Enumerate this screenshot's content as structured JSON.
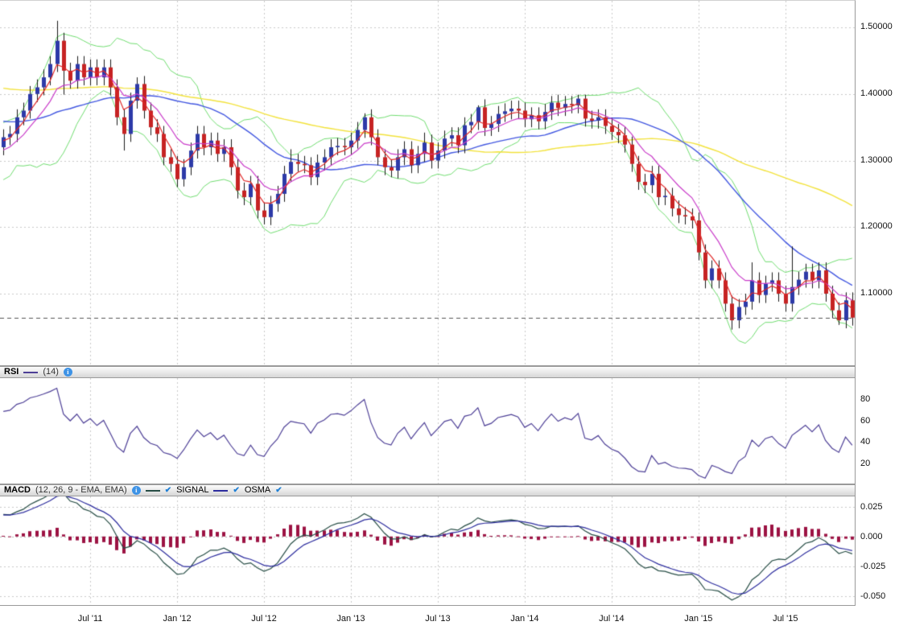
{
  "icons": {
    "check": "✔",
    "properties": "i"
  },
  "chart_data": {
    "type": "candlestick",
    "description": "FX price chart with Bollinger Bands and moving averages, RSI sub-panel and MACD sub-panel",
    "colors": {
      "up": "#2d3aa8",
      "down": "#c62323",
      "wick": "#1a1a1a",
      "bollinger": "#6fdc6f",
      "ma_fast": "#e02626",
      "ma_mid": "#c93cc9",
      "ma_slow": "#4257e0",
      "ma_long": "#f2e23c",
      "grid": "#c8c8c8",
      "price_line": "#555555",
      "rsi": "#4d3f96",
      "macd_line": "#274d45",
      "signal_line": "#2d2d9e",
      "histogram": "#9c1243"
    },
    "x_axis": {
      "ticks": [
        {
          "label": "Jul '11",
          "index": 13
        },
        {
          "label": "Jan '12",
          "index": 26
        },
        {
          "label": "Jul '12",
          "index": 39
        },
        {
          "label": "Jan '13",
          "index": 52
        },
        {
          "label": "Jul '13",
          "index": 65
        },
        {
          "label": "Jan '14",
          "index": 78
        },
        {
          "label": "Jul '14",
          "index": 91
        },
        {
          "label": "Jan '15",
          "index": 104
        },
        {
          "label": "Jul '15",
          "index": 117
        }
      ]
    },
    "main": {
      "y_range": [
        0.99,
        1.54
      ],
      "y_ticks": [
        {
          "label": "1.50000",
          "value": 1.5
        },
        {
          "label": "1.40000",
          "value": 1.4
        },
        {
          "label": "1.30000",
          "value": 1.3
        },
        {
          "label": "1.20000",
          "value": 1.2
        },
        {
          "label": "1.10000",
          "value": 1.1
        }
      ],
      "last_price": 1.064,
      "overlays": {
        "bollinger": {
          "period": 10,
          "deviation": 2
        },
        "ma_fast_period": 4,
        "ma_mid_period": 9,
        "ma_slow_period": 26,
        "ma_long_period": 56,
        "ma_slow_seed": 1.36,
        "ma_long_seed": 1.41
      },
      "prehistory_closes": [
        1.25,
        1.29,
        1.27,
        1.31,
        1.3,
        1.33,
        1.31,
        1.34,
        1.32,
        1.335
      ],
      "candles": [
        [
          1.32,
          1.347,
          1.308,
          1.335
        ],
        [
          1.335,
          1.352,
          1.323,
          1.34
        ],
        [
          1.34,
          1.377,
          1.328,
          1.365
        ],
        [
          1.365,
          1.387,
          1.353,
          1.375
        ],
        [
          1.375,
          1.412,
          1.363,
          1.4
        ],
        [
          1.4,
          1.422,
          1.388,
          1.41
        ],
        [
          1.41,
          1.437,
          1.398,
          1.425
        ],
        [
          1.425,
          1.457,
          1.413,
          1.445
        ],
        [
          1.445,
          1.51,
          1.433,
          1.48
        ],
        [
          1.48,
          1.492,
          1.399,
          1.435
        ],
        [
          1.435,
          1.447,
          1.408,
          1.42
        ],
        [
          1.42,
          1.457,
          1.408,
          1.445
        ],
        [
          1.445,
          1.457,
          1.413,
          1.425
        ],
        [
          1.425,
          1.452,
          1.413,
          1.44
        ],
        [
          1.44,
          1.452,
          1.413,
          1.425
        ],
        [
          1.425,
          1.452,
          1.413,
          1.44
        ],
        [
          1.44,
          1.452,
          1.398,
          1.41
        ],
        [
          1.41,
          1.422,
          1.353,
          1.365
        ],
        [
          1.365,
          1.377,
          1.315,
          1.34
        ],
        [
          1.34,
          1.402,
          1.328,
          1.39
        ],
        [
          1.39,
          1.425,
          1.378,
          1.415
        ],
        [
          1.415,
          1.427,
          1.363,
          1.375
        ],
        [
          1.375,
          1.387,
          1.338,
          1.35
        ],
        [
          1.35,
          1.362,
          1.328,
          1.34
        ],
        [
          1.34,
          1.352,
          1.293,
          1.305
        ],
        [
          1.305,
          1.317,
          1.283,
          1.295
        ],
        [
          1.295,
          1.307,
          1.26,
          1.272
        ],
        [
          1.272,
          1.302,
          1.261,
          1.29
        ],
        [
          1.29,
          1.327,
          1.278,
          1.315
        ],
        [
          1.315,
          1.352,
          1.303,
          1.34
        ],
        [
          1.34,
          1.352,
          1.308,
          1.32
        ],
        [
          1.32,
          1.342,
          1.308,
          1.33
        ],
        [
          1.33,
          1.342,
          1.298,
          1.31
        ],
        [
          1.31,
          1.332,
          1.298,
          1.32
        ],
        [
          1.32,
          1.332,
          1.278,
          1.29
        ],
        [
          1.29,
          1.302,
          1.243,
          1.255
        ],
        [
          1.255,
          1.267,
          1.233,
          1.245
        ],
        [
          1.245,
          1.277,
          1.233,
          1.265
        ],
        [
          1.265,
          1.277,
          1.213,
          1.225
        ],
        [
          1.225,
          1.237,
          1.204,
          1.215
        ],
        [
          1.215,
          1.247,
          1.203,
          1.235
        ],
        [
          1.235,
          1.262,
          1.223,
          1.25
        ],
        [
          1.25,
          1.292,
          1.238,
          1.28
        ],
        [
          1.28,
          1.317,
          1.268,
          1.298
        ],
        [
          1.298,
          1.31,
          1.283,
          1.295
        ],
        [
          1.295,
          1.307,
          1.281,
          1.293
        ],
        [
          1.293,
          1.305,
          1.263,
          1.275
        ],
        [
          1.275,
          1.309,
          1.263,
          1.297
        ],
        [
          1.297,
          1.317,
          1.285,
          1.305
        ],
        [
          1.305,
          1.332,
          1.293,
          1.32
        ],
        [
          1.32,
          1.334,
          1.308,
          1.322
        ],
        [
          1.322,
          1.334,
          1.308,
          1.32
        ],
        [
          1.32,
          1.342,
          1.308,
          1.33
        ],
        [
          1.33,
          1.358,
          1.318,
          1.346
        ],
        [
          1.346,
          1.371,
          1.334,
          1.365
        ],
        [
          1.365,
          1.377,
          1.323,
          1.335
        ],
        [
          1.335,
          1.347,
          1.293,
          1.305
        ],
        [
          1.305,
          1.317,
          1.278,
          1.29
        ],
        [
          1.29,
          1.302,
          1.275,
          1.285
        ],
        [
          1.285,
          1.317,
          1.273,
          1.305
        ],
        [
          1.305,
          1.329,
          1.293,
          1.317
        ],
        [
          1.317,
          1.329,
          1.281,
          1.293
        ],
        [
          1.293,
          1.322,
          1.281,
          1.31
        ],
        [
          1.31,
          1.342,
          1.298,
          1.327
        ],
        [
          1.327,
          1.339,
          1.288,
          1.3
        ],
        [
          1.3,
          1.327,
          1.288,
          1.315
        ],
        [
          1.315,
          1.345,
          1.303,
          1.333
        ],
        [
          1.333,
          1.35,
          1.321,
          1.338
        ],
        [
          1.338,
          1.35,
          1.311,
          1.323
        ],
        [
          1.323,
          1.365,
          1.311,
          1.353
        ],
        [
          1.353,
          1.37,
          1.341,
          1.358
        ],
        [
          1.358,
          1.383,
          1.346,
          1.38
        ],
        [
          1.38,
          1.392,
          1.337,
          1.349
        ],
        [
          1.349,
          1.367,
          1.337,
          1.355
        ],
        [
          1.355,
          1.382,
          1.343,
          1.37
        ],
        [
          1.37,
          1.386,
          1.358,
          1.374
        ],
        [
          1.374,
          1.39,
          1.362,
          1.378
        ],
        [
          1.378,
          1.39,
          1.363,
          1.375
        ],
        [
          1.375,
          1.387,
          1.35,
          1.362
        ],
        [
          1.362,
          1.38,
          1.35,
          1.368
        ],
        [
          1.368,
          1.38,
          1.347,
          1.359
        ],
        [
          1.359,
          1.385,
          1.347,
          1.373
        ],
        [
          1.373,
          1.397,
          1.361,
          1.387
        ],
        [
          1.387,
          1.399,
          1.367,
          1.379
        ],
        [
          1.379,
          1.397,
          1.367,
          1.385
        ],
        [
          1.385,
          1.397,
          1.371,
          1.383
        ],
        [
          1.383,
          1.399,
          1.371,
          1.393
        ],
        [
          1.393,
          1.399,
          1.351,
          1.363
        ],
        [
          1.363,
          1.375,
          1.348,
          1.36
        ],
        [
          1.36,
          1.377,
          1.348,
          1.365
        ],
        [
          1.365,
          1.377,
          1.34,
          1.352
        ],
        [
          1.352,
          1.364,
          1.331,
          1.343
        ],
        [
          1.343,
          1.355,
          1.326,
          1.338
        ],
        [
          1.338,
          1.35,
          1.312,
          1.324
        ],
        [
          1.324,
          1.336,
          1.283,
          1.295
        ],
        [
          1.295,
          1.307,
          1.256,
          1.268
        ],
        [
          1.268,
          1.28,
          1.251,
          1.263
        ],
        [
          1.263,
          1.292,
          1.251,
          1.28
        ],
        [
          1.28,
          1.292,
          1.233,
          1.245
        ],
        [
          1.245,
          1.259,
          1.233,
          1.247
        ],
        [
          1.247,
          1.259,
          1.216,
          1.228
        ],
        [
          1.228,
          1.24,
          1.206,
          1.218
        ],
        [
          1.218,
          1.23,
          1.204,
          1.216
        ],
        [
          1.216,
          1.228,
          1.198,
          1.21
        ],
        [
          1.21,
          1.222,
          1.15,
          1.162
        ],
        [
          1.162,
          1.174,
          1.108,
          1.12
        ],
        [
          1.12,
          1.15,
          1.108,
          1.138
        ],
        [
          1.138,
          1.15,
          1.108,
          1.12
        ],
        [
          1.12,
          1.132,
          1.073,
          1.085
        ],
        [
          1.085,
          1.097,
          1.046,
          1.06
        ],
        [
          1.06,
          1.092,
          1.048,
          1.08
        ],
        [
          1.08,
          1.1,
          1.068,
          1.088
        ],
        [
          1.088,
          1.147,
          1.076,
          1.12
        ],
        [
          1.12,
          1.132,
          1.086,
          1.098
        ],
        [
          1.098,
          1.127,
          1.086,
          1.115
        ],
        [
          1.115,
          1.132,
          1.103,
          1.12
        ],
        [
          1.12,
          1.132,
          1.088,
          1.1
        ],
        [
          1.1,
          1.112,
          1.073,
          1.085
        ],
        [
          1.085,
          1.171,
          1.073,
          1.11
        ],
        [
          1.11,
          1.133,
          1.098,
          1.121
        ],
        [
          1.121,
          1.145,
          1.109,
          1.133
        ],
        [
          1.133,
          1.145,
          1.108,
          1.12
        ],
        [
          1.12,
          1.147,
          1.108,
          1.135
        ],
        [
          1.135,
          1.147,
          1.088,
          1.1
        ],
        [
          1.1,
          1.112,
          1.063,
          1.075
        ],
        [
          1.075,
          1.087,
          1.053,
          1.06
        ],
        [
          1.06,
          1.102,
          1.048,
          1.09
        ],
        [
          1.09,
          1.102,
          1.052,
          1.064
        ]
      ]
    },
    "rsi": {
      "title": "RSI",
      "params": "(14)",
      "compute_period": 7,
      "y_range": [
        0,
        100
      ],
      "y_ticks": [
        {
          "label": "80",
          "value": 80
        },
        {
          "label": "60",
          "value": 60
        },
        {
          "label": "40",
          "value": 40
        },
        {
          "label": "20",
          "value": 20
        }
      ]
    },
    "macd": {
      "title": "MACD",
      "params": "(12, 26, 9 - EMA, EMA)",
      "signal_label": "SIGNAL",
      "osma_label": "OSMA",
      "compute": {
        "fast": 6,
        "slow": 13,
        "signal": 5
      },
      "y_range": [
        -0.058,
        0.0335
      ],
      "y_ticks": [
        {
          "label": "0.025",
          "value": 0.025
        },
        {
          "label": "0.000",
          "value": 0
        },
        {
          "label": "-0.025",
          "value": -0.025
        },
        {
          "label": "-0.050",
          "value": -0.05
        }
      ]
    }
  }
}
